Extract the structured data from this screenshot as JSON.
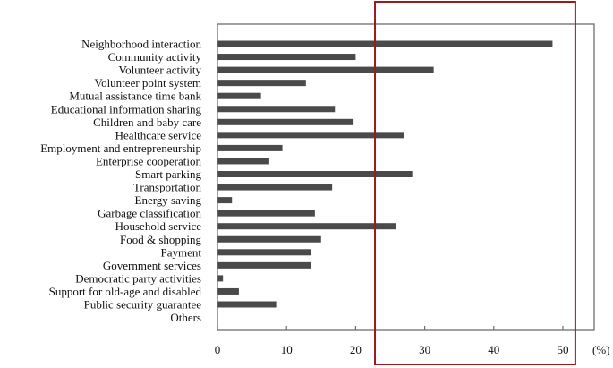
{
  "chart_data": {
    "type": "bar",
    "orientation": "horizontal",
    "categories": [
      "Neighborhood interaction",
      "Community activity",
      "Volunteer activity",
      "Volunteer point system",
      "Mutual assistance time bank",
      "Educational information sharing",
      "Children and baby care",
      "Healthcare service",
      "Employment and entrepreneurship",
      "Enterprise cooperation",
      "Smart parking",
      "Transportation",
      "Energy saving",
      "Garbage classification",
      "Household service",
      "Food & shopping",
      "Payment",
      "Government services",
      "Democratic party activities",
      "Support  for old-age and disabled",
      "Public security guarantee",
      "Others"
    ],
    "values": [
      48.5,
      20,
      31.3,
      12.8,
      6.3,
      17,
      19.7,
      27,
      9.4,
      7.5,
      28.2,
      16.6,
      2.1,
      14.1,
      25.9,
      15,
      13.5,
      13.5,
      0.8,
      3.1,
      8.5,
      0
    ],
    "x_ticks": [
      "0",
      "10",
      "20",
      "30",
      "40",
      "50"
    ],
    "xlim": [
      0,
      54
    ],
    "unit": "(%)",
    "bar_color": "#4a4a4a",
    "frame_color": "#6e6e6e",
    "highlight": {
      "x_range": [
        22.8,
        51.8
      ],
      "color": "#9b1b1b"
    }
  }
}
